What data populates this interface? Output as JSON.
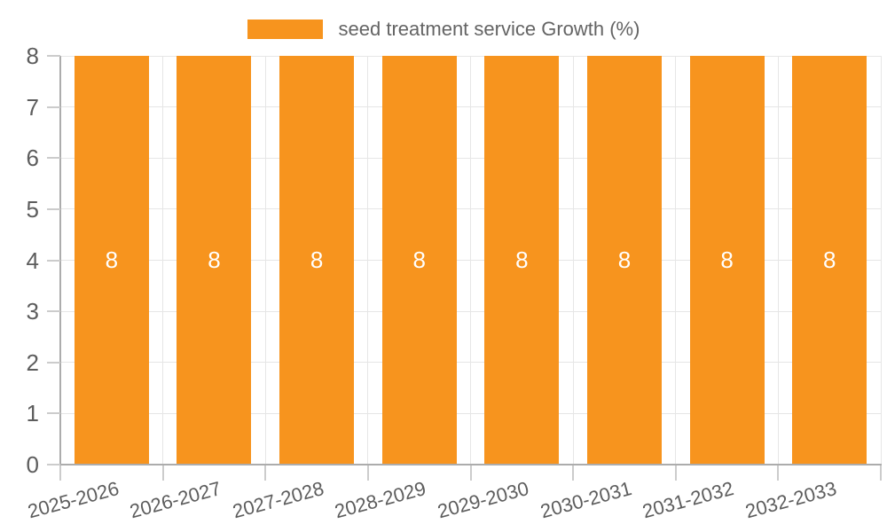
{
  "chart_data": {
    "type": "bar",
    "title": "",
    "legend": {
      "label": "seed treatment service Growth (%)",
      "position": "top-center"
    },
    "categories": [
      "2025-2026",
      "2026-2027",
      "2027-2028",
      "2028-2029",
      "2029-2030",
      "2030-2031",
      "2031-2032",
      "2032-2033"
    ],
    "values": [
      8,
      8,
      8,
      8,
      8,
      8,
      8,
      8
    ],
    "bar_value_labels": [
      "8",
      "8",
      "8",
      "8",
      "8",
      "8",
      "8",
      "8"
    ],
    "xlabel": "",
    "ylabel": "",
    "ylim": [
      0,
      8
    ],
    "yticks": [
      0,
      1,
      2,
      3,
      4,
      5,
      6,
      7,
      8
    ],
    "grid": true,
    "x_label_rotation_deg": -15,
    "colors": {
      "bar": "#F7941E",
      "bar_label_text": "#FFFFFF",
      "gridline": "#E6E6E6",
      "axis_line": "#ACACAC",
      "tick_mark": "#CCCCCC",
      "tick_text": "#5D5D5D",
      "legend_text": "#646464",
      "background": "#FFFFFF"
    }
  }
}
